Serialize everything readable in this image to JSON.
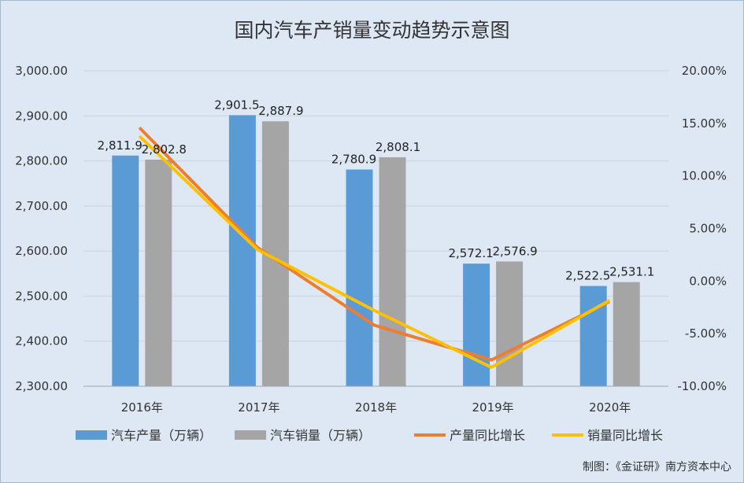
{
  "chart_data": {
    "type": "bar",
    "title": "国内汽车产销量变动趋势示意图",
    "categories": [
      "2016年",
      "2017年",
      "2018年",
      "2019年",
      "2020年"
    ],
    "y_left": {
      "ylim": [
        2300,
        3000
      ],
      "ticks": [
        "2,300.00",
        "2,400.00",
        "2,500.00",
        "2,600.00",
        "2,700.00",
        "2,800.00",
        "2,900.00",
        "3,000.00"
      ]
    },
    "y_right": {
      "ylim": [
        -10,
        20
      ],
      "ticks": [
        "-10.00%",
        "-5.00%",
        "0.00%",
        "5.00%",
        "10.00%",
        "15.00%",
        "20.00%"
      ]
    },
    "series": [
      {
        "name": "汽车产量（万辆）",
        "kind": "bar",
        "axis": "left",
        "color": "#5b9bd5",
        "values": [
          2811.9,
          2901.5,
          2780.9,
          2572.1,
          2522.5
        ],
        "labels": [
          "2,811.9",
          "2,901.5",
          "2,780.9",
          "2,572.1",
          "2,522.5"
        ]
      },
      {
        "name": "汽车销量（万辆）",
        "kind": "bar",
        "axis": "left",
        "color": "#a5a5a5",
        "values": [
          2802.8,
          2887.9,
          2808.1,
          2576.9,
          2531.1
        ],
        "labels": [
          "2,802.8",
          "2,887.9",
          "2,808.1",
          "2,576.9",
          "2,531.1"
        ]
      },
      {
        "name": "产量同比增长",
        "kind": "line",
        "axis": "right",
        "color": "#ed7d31",
        "values": [
          14.5,
          3.2,
          -4.2,
          -7.5,
          -2.0
        ]
      },
      {
        "name": "销量同比增长",
        "kind": "line",
        "axis": "right",
        "color": "#ffc000",
        "values": [
          13.7,
          3.0,
          -2.8,
          -8.2,
          -1.9
        ]
      }
    ],
    "grid": true,
    "legend": "bottom"
  },
  "credit": "制图：《金证研》南方资本中心"
}
